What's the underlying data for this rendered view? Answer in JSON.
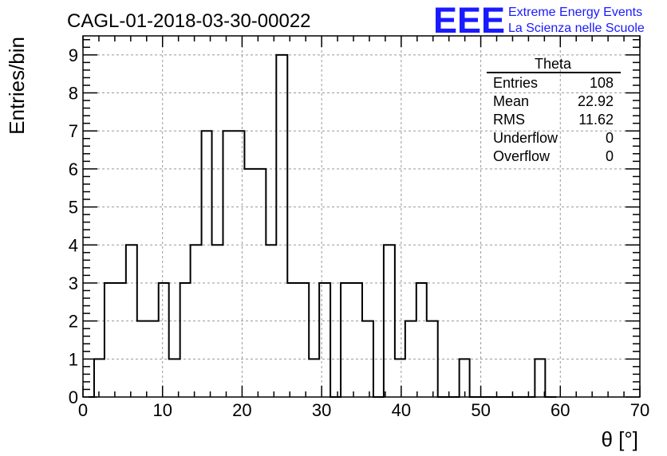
{
  "header": {
    "run_title": "CAGL-01-2018-03-30-00022",
    "logo_text": "EEE",
    "logo_line1": "Extreme Energy Events",
    "logo_line2": "La Scienza nelle Scuole"
  },
  "stats_box": {
    "title": "Theta",
    "rows": [
      {
        "label": "Entries",
        "value": "108"
      },
      {
        "label": "Mean",
        "value": "22.92"
      },
      {
        "label": "RMS",
        "value": "11.62"
      },
      {
        "label": "Underflow",
        "value": "0"
      },
      {
        "label": "Overflow",
        "value": "0"
      }
    ]
  },
  "colors": {
    "logo": "#1a1aff",
    "line": "#000000",
    "grid": "#999999"
  },
  "chart_data": {
    "type": "bar",
    "subtype": "step-histogram",
    "title": "CAGL-01-2018-03-30-00022",
    "xlabel": "θ [°]",
    "ylabel": "Entries/bin",
    "xlim": [
      0,
      70
    ],
    "ylim": [
      0,
      9.5
    ],
    "grid": true,
    "x_ticks": [
      0,
      10,
      20,
      30,
      40,
      50,
      60,
      70
    ],
    "y_ticks": [
      0,
      1,
      2,
      3,
      4,
      5,
      6,
      7,
      8,
      9
    ],
    "bin_edges": [
      0.7,
      1.4,
      2.7,
      4.1,
      5.4,
      6.8,
      8.1,
      9.5,
      10.8,
      12.2,
      13.5,
      14.9,
      16.2,
      17.6,
      18.9,
      20.3,
      21.6,
      23.0,
      24.3,
      25.7,
      27.0,
      28.4,
      29.7,
      31.1,
      32.4,
      33.8,
      35.1,
      36.5,
      37.8,
      39.2,
      40.5,
      41.9,
      43.2,
      44.6,
      45.9,
      47.3,
      48.6,
      50.0,
      51.4,
      52.7,
      54.1,
      55.4,
      56.8,
      58.1,
      59.5
    ],
    "values": [
      0,
      1,
      3,
      3,
      4,
      2,
      2,
      3,
      1,
      3,
      4,
      7,
      4,
      7,
      7,
      6,
      6,
      4,
      9,
      3,
      3,
      1,
      3,
      0,
      3,
      3,
      2,
      0,
      4,
      1,
      2,
      3,
      2,
      0,
      0,
      1,
      0,
      0,
      0,
      0,
      0,
      0,
      1,
      0
    ]
  }
}
